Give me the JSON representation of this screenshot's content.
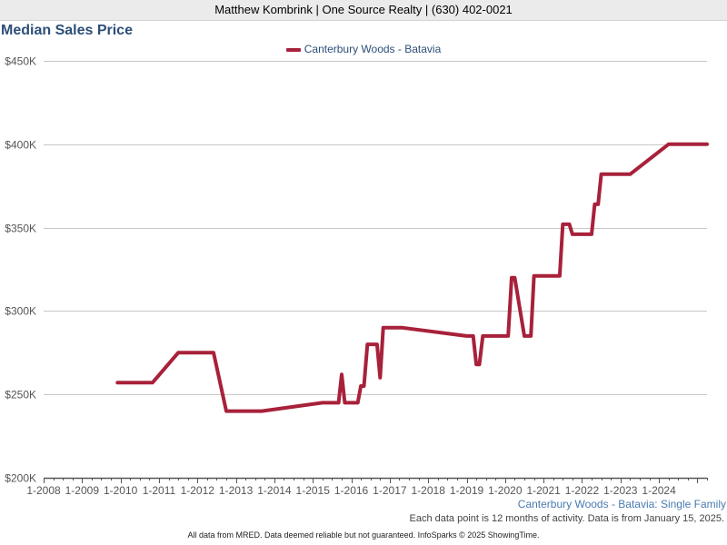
{
  "header": {
    "text": "Matthew Kombrink | One Source Realty | (630) 402-0021"
  },
  "chart_data": {
    "type": "line",
    "title": "Median Sales Price",
    "xlabel": "",
    "ylabel": "",
    "ylim": [
      200000,
      450000
    ],
    "y_ticks": [
      200000,
      250000,
      300000,
      350000,
      400000,
      450000
    ],
    "y_tick_labels": [
      "$200K",
      "$250K",
      "$300K",
      "$350K",
      "$400K",
      "$450K"
    ],
    "xlim": [
      2008.0,
      2025.25
    ],
    "x_ticks": [
      2008,
      2009,
      2010,
      2011,
      2012,
      2013,
      2014,
      2015,
      2016,
      2017,
      2018,
      2019,
      2020,
      2021,
      2022,
      2023,
      2024
    ],
    "x_tick_labels": [
      "1-2008",
      "1-2009",
      "1-2010",
      "1-2011",
      "1-2012",
      "1-2013",
      "1-2014",
      "1-2015",
      "1-2016",
      "1-2017",
      "1-2018",
      "1-2019",
      "1-2020",
      "1-2021",
      "1-2022",
      "1-2023",
      "1-2024"
    ],
    "grid": true,
    "legend_position": "top-center",
    "series": [
      {
        "name": "Canterbury Woods - Batavia",
        "color": "#a8213a",
        "points": [
          [
            2009.92,
            257000
          ],
          [
            2010.83,
            257000
          ],
          [
            2011.5,
            275000
          ],
          [
            2012.42,
            275000
          ],
          [
            2012.75,
            240000
          ],
          [
            2013.67,
            240000
          ],
          [
            2015.25,
            245000
          ],
          [
            2015.67,
            245000
          ],
          [
            2015.75,
            262000
          ],
          [
            2015.83,
            245000
          ],
          [
            2016.17,
            245000
          ],
          [
            2016.25,
            255000
          ],
          [
            2016.33,
            255000
          ],
          [
            2016.42,
            280000
          ],
          [
            2016.67,
            280000
          ],
          [
            2016.75,
            260000
          ],
          [
            2016.83,
            290000
          ],
          [
            2017.33,
            290000
          ],
          [
            2019.0,
            285000
          ],
          [
            2019.17,
            285000
          ],
          [
            2019.25,
            268000
          ],
          [
            2019.33,
            268000
          ],
          [
            2019.42,
            285000
          ],
          [
            2020.08,
            285000
          ],
          [
            2020.17,
            320000
          ],
          [
            2020.25,
            320000
          ],
          [
            2020.5,
            285000
          ],
          [
            2020.67,
            285000
          ],
          [
            2020.75,
            321000
          ],
          [
            2021.42,
            321000
          ],
          [
            2021.5,
            352000
          ],
          [
            2021.67,
            352000
          ],
          [
            2021.75,
            346000
          ],
          [
            2022.25,
            346000
          ],
          [
            2022.33,
            364000
          ],
          [
            2022.42,
            364000
          ],
          [
            2022.5,
            382000
          ],
          [
            2023.25,
            382000
          ],
          [
            2024.25,
            400000
          ],
          [
            2025.25,
            400000
          ]
        ]
      }
    ]
  },
  "footer": {
    "series_label": "Canterbury Woods - Batavia: Single Family",
    "note": "Each data point is 12 months of activity. Data is from January 15, 2025.",
    "credit": "All data from MRED. Data deemed reliable but not guaranteed. InfoSparks © 2025 ShowingTime."
  }
}
